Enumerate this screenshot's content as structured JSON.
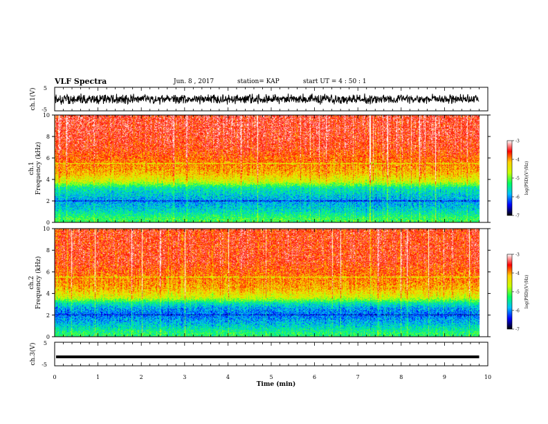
{
  "header": {
    "title": "VLF Spectra",
    "date": "Jun. 8 , 2017",
    "station": "station= KAP",
    "start_ut": "start UT = 4 : 50 : 1"
  },
  "chart_data": [
    {
      "type": "line",
      "ylabel": "ch.1(V)",
      "ylim": [
        -5,
        5
      ],
      "yticks": [
        "5",
        "-5"
      ],
      "x_range_min": [
        0,
        9.8
      ],
      "series": [
        {
          "values_note": "",
          "band": [
            -2.5,
            2.5
          ]
        }
      ]
    },
    {
      "type": "heatmap",
      "ylabel": "ch.1 Frequency (kHz)",
      "ylim": [
        0,
        10
      ],
      "yticks": [
        "0",
        "2",
        "4",
        "6",
        "8",
        "10"
      ],
      "x_range_min": [
        0,
        9.8
      ],
      "colorbar": {
        "label": "log(PSD)(V²/Hz)",
        "ticks": [
          "-3",
          "-4",
          "-5",
          "-6",
          "-7"
        ],
        "range": [
          -7,
          -3
        ]
      },
      "profile_khz_logpsd": [
        [
          0.3,
          -5.2
        ],
        [
          1,
          -5.6
        ],
        [
          1.5,
          -5.8
        ],
        [
          2,
          -5.9
        ],
        [
          2.6,
          -5.7
        ],
        [
          3.2,
          -5.5
        ],
        [
          3.8,
          -4.6
        ],
        [
          4.5,
          -4.2
        ],
        [
          5.5,
          -3.9
        ],
        [
          7,
          -3.6
        ],
        [
          8.5,
          -3.5
        ],
        [
          10,
          -3.5
        ]
      ]
    },
    {
      "type": "heatmap",
      "ylabel": "ch.2 Frequency (kHz)",
      "ylim": [
        0,
        10
      ],
      "yticks": [
        "0",
        "2",
        "4",
        "6",
        "8",
        "10"
      ],
      "x_range_min": [
        0,
        9.8
      ],
      "colorbar": {
        "label": "log(PSD)(V²/Hz)",
        "ticks": [
          "-3",
          "-4",
          "-5",
          "-6",
          "-7"
        ],
        "range": [
          -7,
          -3
        ]
      },
      "profile_khz_logpsd": [
        [
          0.3,
          -5.3
        ],
        [
          1,
          -5.7
        ],
        [
          1.5,
          -5.9
        ],
        [
          2,
          -6.1
        ],
        [
          2.6,
          -5.9
        ],
        [
          3.1,
          -5.5
        ],
        [
          3.6,
          -4.6
        ],
        [
          4.5,
          -4.1
        ],
        [
          5.5,
          -3.9
        ],
        [
          7,
          -3.6
        ],
        [
          8.5,
          -3.6
        ],
        [
          10,
          -3.6
        ]
      ]
    },
    {
      "type": "line",
      "ylabel": "ch.3(V)",
      "ylim": [
        -5,
        5
      ],
      "yticks": [
        "5",
        "-5"
      ],
      "x_range_min": [
        0,
        9.8
      ],
      "series": [
        {
          "constant": -1.2
        }
      ]
    }
  ],
  "x_axis": {
    "label": "Time (min)",
    "ticks": [
      "0",
      "1",
      "2",
      "3",
      "4",
      "5",
      "6",
      "7",
      "8",
      "9",
      "10"
    ],
    "range": [
      0,
      10
    ]
  },
  "colors": {
    "colormap": [
      "#000000",
      "#0000ff",
      "#00c0ff",
      "#00ff60",
      "#c8ff00",
      "#ffd000",
      "#ff0000",
      "#ffffff"
    ]
  }
}
